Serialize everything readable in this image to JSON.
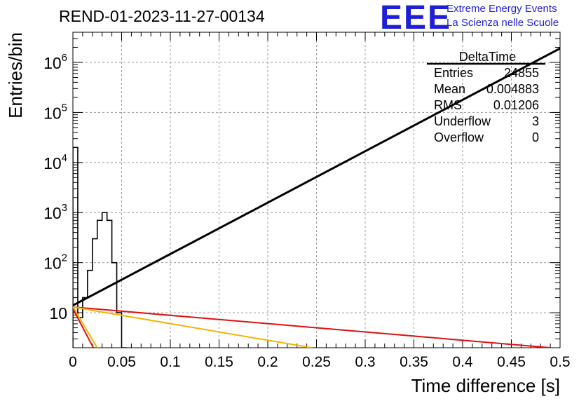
{
  "header": {
    "title": "REND-01-2023-11-27-00134",
    "logo_text": "EEE",
    "logo_line1": "Extreme Energy Events",
    "logo_line2": "La Scienza nelle Scuole"
  },
  "chart_data": {
    "type": "line",
    "xlabel": "Time difference [s]",
    "ylabel": "Entries/bin",
    "xlim": [
      0,
      0.5
    ],
    "ylim": [
      2,
      4000000
    ],
    "yscale": "log",
    "grid": true,
    "xticks": [
      0,
      0.05,
      0.1,
      0.15,
      0.2,
      0.25,
      0.3,
      0.35,
      0.4,
      0.45,
      0.5
    ],
    "xtick_labels": [
      "0",
      "0.05",
      "0.1",
      "0.15",
      "0.2",
      "0.25",
      "0.3",
      "0.35",
      "0.4",
      "0.45",
      "0.5"
    ],
    "yticks": [
      10,
      100,
      1000,
      10000,
      100000,
      1000000
    ],
    "ytick_labels": [
      {
        "base": "10",
        "exp": ""
      },
      {
        "base": "10",
        "exp": "2"
      },
      {
        "base": "10",
        "exp": "3"
      },
      {
        "base": "10",
        "exp": "4"
      },
      {
        "base": "10",
        "exp": "5"
      },
      {
        "base": "10",
        "exp": "6"
      }
    ],
    "histogram": {
      "bin_width": 0.005,
      "bin_start": 0,
      "counts": [
        20000,
        8,
        20,
        70,
        300,
        700,
        1000,
        700,
        100,
        10,
        1
      ]
    },
    "series": [
      {
        "color": "#000000",
        "style": "line",
        "x": [
          0,
          0.5
        ],
        "y": [
          14,
          1900000
        ]
      },
      {
        "color": "#e01010",
        "style": "line",
        "x": [
          0,
          0.49
        ],
        "y": [
          13,
          2
        ]
      },
      {
        "color": "#f5b400",
        "style": "line",
        "x": [
          0,
          0.245
        ],
        "y": [
          13,
          2
        ]
      },
      {
        "color": "#f5b400",
        "style": "line",
        "x": [
          0,
          0.025
        ],
        "y": [
          13,
          2
        ]
      },
      {
        "color": "#e01010",
        "style": "line",
        "x": [
          0,
          0.021
        ],
        "y": [
          12,
          2
        ]
      }
    ],
    "stats_box": {
      "title": "DeltaTime",
      "rows": [
        {
          "label": "Entries",
          "value": "24855"
        },
        {
          "label": "Mean",
          "value": "0.004883"
        },
        {
          "label": "RMS",
          "value": "0.01206"
        },
        {
          "label": "Underflow",
          "value": "3"
        },
        {
          "label": "Overflow",
          "value": "0"
        }
      ]
    }
  }
}
